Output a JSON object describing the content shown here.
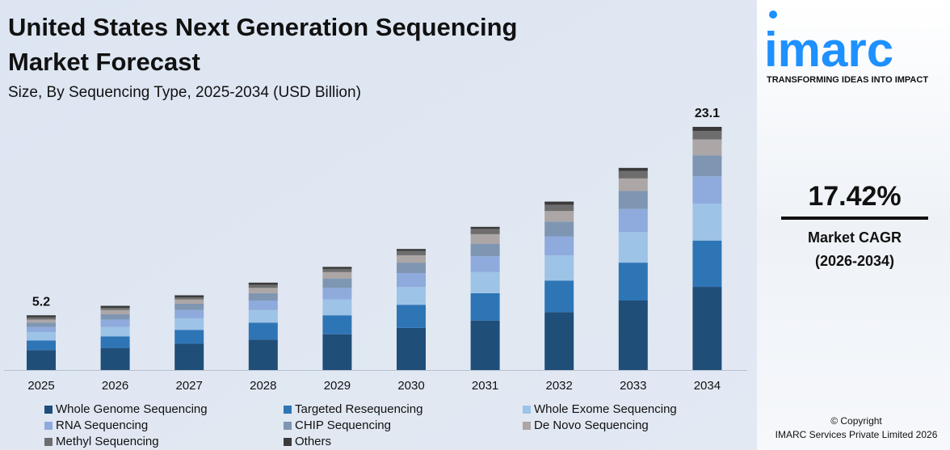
{
  "chart_data": {
    "type": "stacked-bar",
    "title": [
      "United States Next Generation Sequencing",
      "Market Forecast"
    ],
    "subtitle": "Size, By Sequencing Type, 2025-2034 (USD Billion)",
    "categories": [
      "2025",
      "2026",
      "2027",
      "2028",
      "2029",
      "2030",
      "2031",
      "2032",
      "2033",
      "2034"
    ],
    "series": [
      {
        "name": "Whole Genome Sequencing",
        "color": "#1f4e79",
        "values": [
          1.9,
          2.1,
          2.5,
          2.9,
          3.4,
          4.0,
          4.7,
          5.5,
          6.6,
          7.9
        ]
      },
      {
        "name": "Targeted Resequencing",
        "color": "#2e75b6",
        "values": [
          0.9,
          1.1,
          1.3,
          1.6,
          1.8,
          2.2,
          2.6,
          3.0,
          3.6,
          4.4
        ]
      },
      {
        "name": "Whole Exome Sequencing",
        "color": "#9dc3e6",
        "values": [
          0.8,
          0.9,
          1.1,
          1.2,
          1.5,
          1.7,
          2.0,
          2.4,
          2.9,
          3.5
        ]
      },
      {
        "name": "RNA Sequencing",
        "color": "#8faadc",
        "values": [
          0.5,
          0.7,
          0.8,
          0.9,
          1.1,
          1.3,
          1.5,
          1.8,
          2.2,
          2.6
        ]
      },
      {
        "name": "CHIP Sequencing",
        "color": "#7f96b2",
        "values": [
          0.4,
          0.5,
          0.6,
          0.7,
          0.9,
          1.0,
          1.2,
          1.4,
          1.7,
          2.0
        ]
      },
      {
        "name": "De Novo Sequencing",
        "color": "#aca6a6",
        "values": [
          0.3,
          0.4,
          0.4,
          0.5,
          0.6,
          0.7,
          0.9,
          1.0,
          1.2,
          1.5
        ]
      },
      {
        "name": "Methyl Sequencing",
        "color": "#6d6d6d",
        "values": [
          0.2,
          0.2,
          0.2,
          0.3,
          0.3,
          0.4,
          0.5,
          0.6,
          0.7,
          0.8
        ]
      },
      {
        "name": "Others",
        "color": "#3a3a3a",
        "values": [
          0.2,
          0.2,
          0.2,
          0.2,
          0.2,
          0.2,
          0.2,
          0.3,
          0.3,
          0.4
        ]
      }
    ],
    "annotations": [
      {
        "x": "2025",
        "value": 5.2
      },
      {
        "x": "2034",
        "value": 23.1
      }
    ]
  },
  "sidebar": {
    "logo": "imarc",
    "tagline": "TRANSFORMING IDEAS INTO IMPACT",
    "cagr": "17.42%",
    "cagr_label": "Market CAGR",
    "cagr_period": "(2026-2034)",
    "copyright": "© Copyright",
    "company": "IMARC Services Private Limited 2026"
  }
}
